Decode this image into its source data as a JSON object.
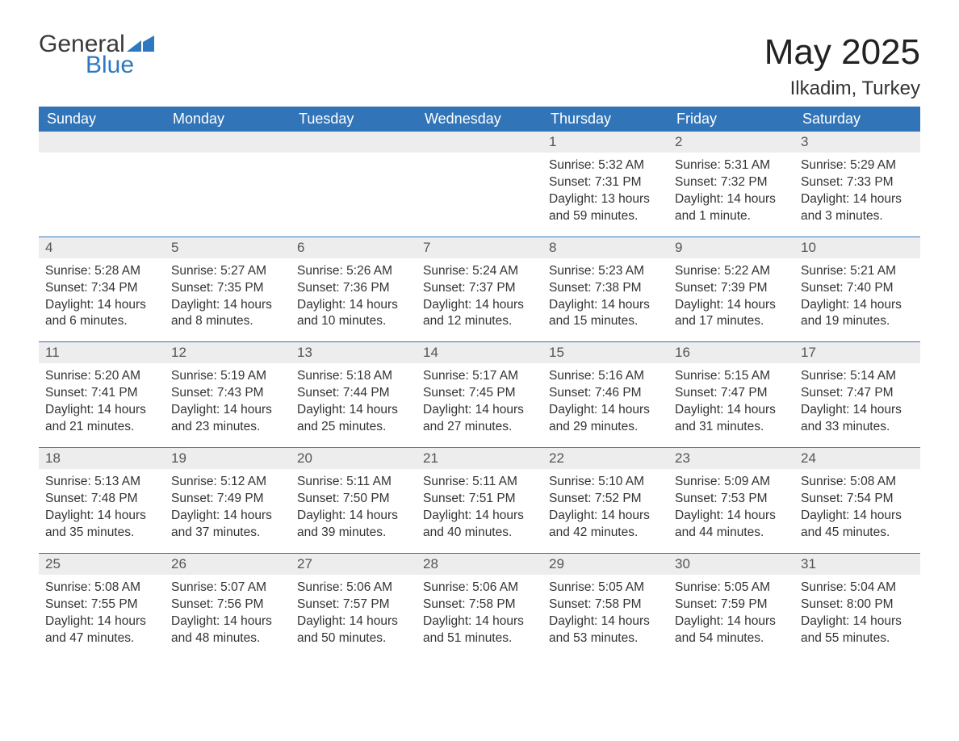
{
  "logo": {
    "text1": "General",
    "text2": "Blue",
    "shape_color": "#2f78bf"
  },
  "title": "May 2025",
  "location": "Ilkadim, Turkey",
  "header_bg": "#3174b8",
  "header_fg": "#ffffff",
  "daynum_bg": "#ededed",
  "border_color": "#3174b8",
  "text_color": "#333333",
  "weekdays": [
    "Sunday",
    "Monday",
    "Tuesday",
    "Wednesday",
    "Thursday",
    "Friday",
    "Saturday"
  ],
  "labels": {
    "sunrise": "Sunrise:",
    "sunset": "Sunset:",
    "daylight": "Daylight:"
  },
  "weeks": [
    [
      {
        "n": "",
        "empty": true
      },
      {
        "n": "",
        "empty": true
      },
      {
        "n": "",
        "empty": true
      },
      {
        "n": "",
        "empty": true
      },
      {
        "n": "1",
        "sunrise": "5:32 AM",
        "sunset": "7:31 PM",
        "daylight": "13 hours and 59 minutes."
      },
      {
        "n": "2",
        "sunrise": "5:31 AM",
        "sunset": "7:32 PM",
        "daylight": "14 hours and 1 minute."
      },
      {
        "n": "3",
        "sunrise": "5:29 AM",
        "sunset": "7:33 PM",
        "daylight": "14 hours and 3 minutes."
      }
    ],
    [
      {
        "n": "4",
        "sunrise": "5:28 AM",
        "sunset": "7:34 PM",
        "daylight": "14 hours and 6 minutes."
      },
      {
        "n": "5",
        "sunrise": "5:27 AM",
        "sunset": "7:35 PM",
        "daylight": "14 hours and 8 minutes."
      },
      {
        "n": "6",
        "sunrise": "5:26 AM",
        "sunset": "7:36 PM",
        "daylight": "14 hours and 10 minutes."
      },
      {
        "n": "7",
        "sunrise": "5:24 AM",
        "sunset": "7:37 PM",
        "daylight": "14 hours and 12 minutes."
      },
      {
        "n": "8",
        "sunrise": "5:23 AM",
        "sunset": "7:38 PM",
        "daylight": "14 hours and 15 minutes."
      },
      {
        "n": "9",
        "sunrise": "5:22 AM",
        "sunset": "7:39 PM",
        "daylight": "14 hours and 17 minutes."
      },
      {
        "n": "10",
        "sunrise": "5:21 AM",
        "sunset": "7:40 PM",
        "daylight": "14 hours and 19 minutes."
      }
    ],
    [
      {
        "n": "11",
        "sunrise": "5:20 AM",
        "sunset": "7:41 PM",
        "daylight": "14 hours and 21 minutes."
      },
      {
        "n": "12",
        "sunrise": "5:19 AM",
        "sunset": "7:43 PM",
        "daylight": "14 hours and 23 minutes."
      },
      {
        "n": "13",
        "sunrise": "5:18 AM",
        "sunset": "7:44 PM",
        "daylight": "14 hours and 25 minutes."
      },
      {
        "n": "14",
        "sunrise": "5:17 AM",
        "sunset": "7:45 PM",
        "daylight": "14 hours and 27 minutes."
      },
      {
        "n": "15",
        "sunrise": "5:16 AM",
        "sunset": "7:46 PM",
        "daylight": "14 hours and 29 minutes."
      },
      {
        "n": "16",
        "sunrise": "5:15 AM",
        "sunset": "7:47 PM",
        "daylight": "14 hours and 31 minutes."
      },
      {
        "n": "17",
        "sunrise": "5:14 AM",
        "sunset": "7:47 PM",
        "daylight": "14 hours and 33 minutes."
      }
    ],
    [
      {
        "n": "18",
        "sunrise": "5:13 AM",
        "sunset": "7:48 PM",
        "daylight": "14 hours and 35 minutes."
      },
      {
        "n": "19",
        "sunrise": "5:12 AM",
        "sunset": "7:49 PM",
        "daylight": "14 hours and 37 minutes."
      },
      {
        "n": "20",
        "sunrise": "5:11 AM",
        "sunset": "7:50 PM",
        "daylight": "14 hours and 39 minutes."
      },
      {
        "n": "21",
        "sunrise": "5:11 AM",
        "sunset": "7:51 PM",
        "daylight": "14 hours and 40 minutes."
      },
      {
        "n": "22",
        "sunrise": "5:10 AM",
        "sunset": "7:52 PM",
        "daylight": "14 hours and 42 minutes."
      },
      {
        "n": "23",
        "sunrise": "5:09 AM",
        "sunset": "7:53 PM",
        "daylight": "14 hours and 44 minutes."
      },
      {
        "n": "24",
        "sunrise": "5:08 AM",
        "sunset": "7:54 PM",
        "daylight": "14 hours and 45 minutes."
      }
    ],
    [
      {
        "n": "25",
        "sunrise": "5:08 AM",
        "sunset": "7:55 PM",
        "daylight": "14 hours and 47 minutes."
      },
      {
        "n": "26",
        "sunrise": "5:07 AM",
        "sunset": "7:56 PM",
        "daylight": "14 hours and 48 minutes."
      },
      {
        "n": "27",
        "sunrise": "5:06 AM",
        "sunset": "7:57 PM",
        "daylight": "14 hours and 50 minutes."
      },
      {
        "n": "28",
        "sunrise": "5:06 AM",
        "sunset": "7:58 PM",
        "daylight": "14 hours and 51 minutes."
      },
      {
        "n": "29",
        "sunrise": "5:05 AM",
        "sunset": "7:58 PM",
        "daylight": "14 hours and 53 minutes."
      },
      {
        "n": "30",
        "sunrise": "5:05 AM",
        "sunset": "7:59 PM",
        "daylight": "14 hours and 54 minutes."
      },
      {
        "n": "31",
        "sunrise": "5:04 AM",
        "sunset": "8:00 PM",
        "daylight": "14 hours and 55 minutes."
      }
    ]
  ]
}
